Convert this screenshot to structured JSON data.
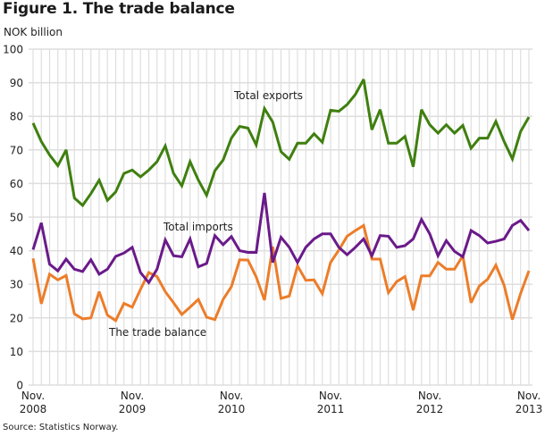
{
  "title": "Figure 1. The trade balance",
  "unit_label": "NOK billion",
  "source": "Source: Statistics Norway.",
  "chart_data": {
    "type": "line",
    "title": "Figure 1. The trade balance",
    "xlabel": "",
    "ylabel": "NOK billion",
    "ylim": [
      0,
      100
    ],
    "yticks": [
      0,
      10,
      20,
      30,
      40,
      50,
      60,
      70,
      80,
      90,
      100
    ],
    "grid": true,
    "x_start": "Nov. 2008",
    "x_end": "Nov. 2013",
    "x_frequency": "monthly",
    "xtick_labels": [
      {
        "index": 0,
        "line1": "Nov.",
        "line2": "2008"
      },
      {
        "index": 12,
        "line1": "Nov.",
        "line2": "2009"
      },
      {
        "index": 24,
        "line1": "Nov.",
        "line2": "2010"
      },
      {
        "index": 36,
        "line1": "Nov.",
        "line2": "2011"
      },
      {
        "index": 48,
        "line1": "Nov.",
        "line2": "2012"
      },
      {
        "index": 60,
        "line1": "Nov.",
        "line2": "2013"
      }
    ],
    "series": [
      {
        "name": "Total exports",
        "color": "#3f7f0f",
        "label_at_index": 25,
        "values": [
          78,
          72.5,
          68.5,
          65.3,
          70,
          55.7,
          53.5,
          57,
          61,
          55,
          57.5,
          63,
          64,
          62,
          64,
          66.5,
          71.2,
          63,
          59.3,
          66.5,
          61,
          56.5,
          63.8,
          67,
          73.5,
          77,
          76.5,
          71.5,
          82.3,
          78.3,
          69.5,
          67.2,
          72,
          72,
          74.8,
          72.3,
          81.8,
          81.5,
          83.5,
          86.5,
          91,
          76,
          82,
          72,
          72,
          74,
          65,
          82,
          77.5,
          75,
          77.5,
          75,
          77.3,
          70.5,
          73.5,
          73.5,
          78.5,
          72.5,
          67.3,
          75.5,
          79.8
        ]
      },
      {
        "name": "Total imports",
        "color": "#6a1a8a",
        "label_at_index": 16,
        "values": [
          40.3,
          48.3,
          36,
          34,
          37.5,
          34.5,
          33.8,
          37.3,
          33,
          34.5,
          38.3,
          39.3,
          41,
          33.5,
          30.5,
          34.5,
          43.2,
          38.5,
          38.2,
          43.5,
          35.2,
          36.2,
          44.5,
          41.8,
          44.2,
          40,
          39.5,
          39.5,
          57.2,
          36.5,
          44,
          41,
          36.5,
          41,
          43.5,
          45,
          45,
          41,
          38.8,
          41,
          43.5,
          38.5,
          44.5,
          44.3,
          41,
          41.5,
          43.5,
          49.3,
          45,
          38.5,
          43,
          39.8,
          38.2,
          46,
          44.5,
          42.3,
          42.8,
          43.5,
          47.5,
          49,
          46
        ]
      },
      {
        "name": "The trade balance",
        "color": "#ec7d2a",
        "label_at_index": 9,
        "values": [
          37.7,
          24.2,
          33,
          31.3,
          32.6,
          21.2,
          19.7,
          20,
          27.8,
          20.8,
          19.2,
          24.3,
          23.2,
          28.5,
          33.5,
          32.3,
          27.8,
          24.5,
          21,
          23.2,
          25.5,
          20.2,
          19.5,
          25.5,
          29.3,
          37.3,
          37.2,
          32.2,
          25.3,
          41.2,
          25.8,
          26.5,
          35.5,
          31.2,
          31.3,
          27.2,
          36.5,
          40.2,
          44.3,
          46,
          47.5,
          37.5,
          37.5,
          27.5,
          30.8,
          32.3,
          22.3,
          32.5,
          32.5,
          36.5,
          34.5,
          34.5,
          38.5,
          24.5,
          29.5,
          31.5,
          35.7,
          29.7,
          19.5,
          27.3,
          34
        ]
      }
    ],
    "annotations": [
      {
        "text": "Total exports",
        "series": "Total exports"
      },
      {
        "text": "Total imports",
        "series": "Total imports"
      },
      {
        "text": "The trade balance",
        "series": "The trade balance"
      }
    ]
  }
}
